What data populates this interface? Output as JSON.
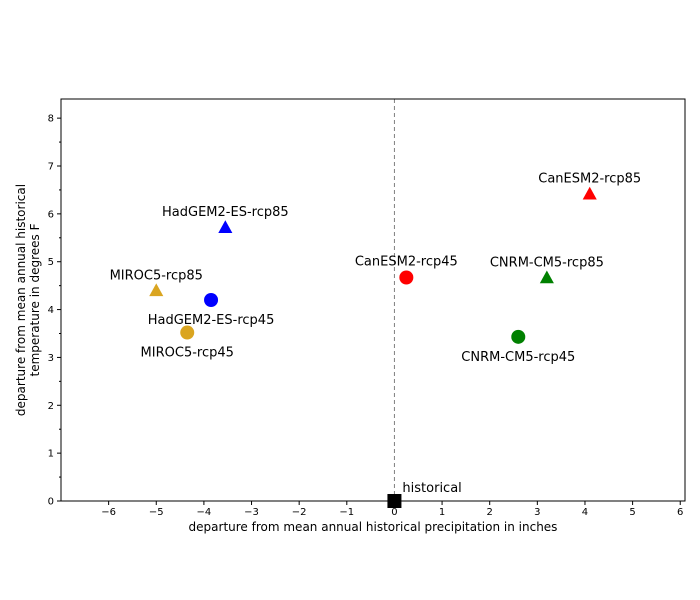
{
  "chart_data": {
    "type": "scatter",
    "xlabel": "departure from mean annual historical precipitation in inches",
    "ylabel_lines": [
      "departure from mean annual historical",
      "temperature in degrees F"
    ],
    "xlim": [
      -7,
      6.1
    ],
    "ylim": [
      0,
      8.4
    ],
    "xticks": [
      -6,
      -5,
      -4,
      -3,
      -2,
      -1,
      0,
      1,
      2,
      3,
      4,
      5,
      6
    ],
    "yticks": [
      0,
      1,
      2,
      3,
      4,
      5,
      6,
      7,
      8
    ],
    "reference_line": {
      "x": 0,
      "style": "dashed",
      "color": "#808080"
    },
    "grid": false,
    "points": [
      {
        "label": "historical",
        "x": 0,
        "y": 0,
        "marker": "square",
        "color": "#000000",
        "label_pos": "upper-right"
      },
      {
        "label": "CanESM2-rcp85",
        "x": 4.1,
        "y": 6.4,
        "marker": "triangle",
        "color": "#ff0000",
        "label_pos": "above"
      },
      {
        "label": "CanESM2-rcp45",
        "x": 0.25,
        "y": 4.67,
        "marker": "circle",
        "color": "#ff0000",
        "label_pos": "above"
      },
      {
        "label": "HadGEM2-ES-rcp85",
        "x": -3.55,
        "y": 5.7,
        "marker": "triangle",
        "color": "#0000ff",
        "label_pos": "above"
      },
      {
        "label": "HadGEM2-ES-rcp45",
        "x": -3.85,
        "y": 4.2,
        "marker": "circle",
        "color": "#0000ff",
        "label_pos": "below"
      },
      {
        "label": "MIROC5-rcp85",
        "x": -5.0,
        "y": 4.38,
        "marker": "triangle",
        "color": "#daa520",
        "label_pos": "above"
      },
      {
        "label": "MIROC5-rcp45",
        "x": -4.35,
        "y": 3.52,
        "marker": "circle",
        "color": "#daa520",
        "label_pos": "below"
      },
      {
        "label": "CNRM-CM5-rcp85",
        "x": 3.2,
        "y": 4.65,
        "marker": "triangle",
        "color": "#008000",
        "label_pos": "above"
      },
      {
        "label": "CNRM-CM5-rcp45",
        "x": 2.6,
        "y": 3.43,
        "marker": "circle",
        "color": "#008000",
        "label_pos": "below"
      }
    ]
  }
}
